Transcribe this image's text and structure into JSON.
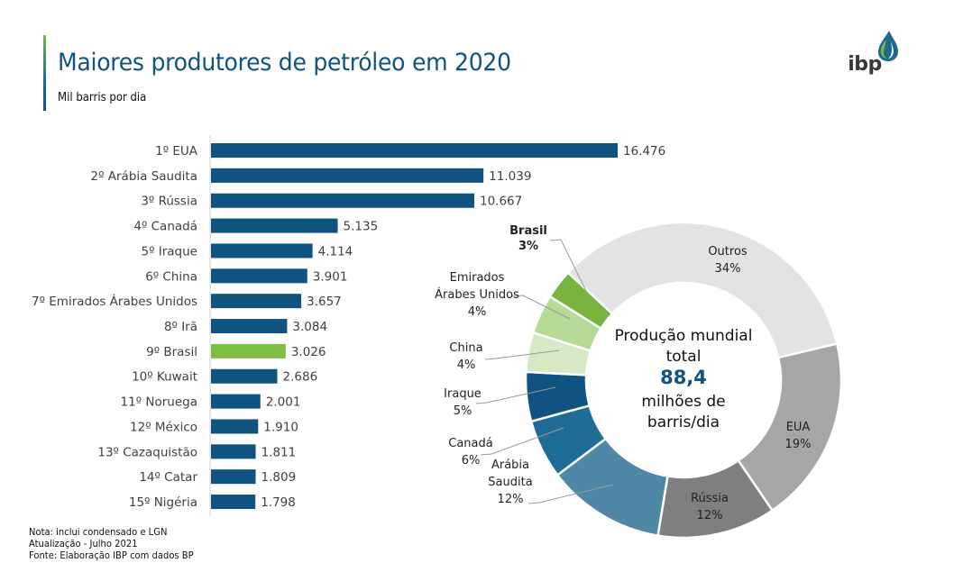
{
  "header": {
    "title": "Maiores produtores de petróleo em 2020",
    "subtitle": "Mil barris por dia",
    "logo_text": "ibp"
  },
  "footnotes": [
    "Nota: inclui condensado e LGN",
    "Atualização - Julho 2021",
    "Fonte: Elaboração IBP com dados BP"
  ],
  "colors": {
    "bar_default": "#0f5480",
    "bar_highlight": "#7dbf42",
    "title": "#0f5480"
  },
  "chart_data": [
    {
      "type": "bar",
      "orientation": "horizontal",
      "title": "Maiores produtores de petróleo em 2020",
      "ylabel": "",
      "xlabel": "Mil barris por dia",
      "highlight": "9º Brasil",
      "categories": [
        "1º EUA",
        "2º Arábia Saudita",
        "3º Rússia",
        "4º Canadá",
        "5º Iraque",
        "6º China",
        "7º Emirados Árabes Unidos",
        "8º Irã",
        "9º Brasil",
        "10º Kuwait",
        "11º Noruega",
        "12º México",
        "13º Cazaquistão",
        "14º Catar",
        "15º Nigéria"
      ],
      "values": [
        16476,
        11039,
        10667,
        5135,
        4114,
        3901,
        3657,
        3084,
        3026,
        2686,
        2001,
        1910,
        1811,
        1809,
        1798
      ],
      "value_labels": [
        "16.476",
        "11.039",
        "10.667",
        "5.135",
        "4.114",
        "3.901",
        "3.657",
        "3.084",
        "3.026",
        "2.686",
        "2.001",
        "1.910",
        "1.811",
        "1.809",
        "1.798"
      ],
      "xlim": [
        0,
        16476
      ],
      "grid": false
    },
    {
      "type": "pie",
      "donut": true,
      "center_text": {
        "line1": "Produção mundial",
        "line2": "total",
        "value": "88,4",
        "line3": "milhões de",
        "line4": "barris/dia"
      },
      "slices": [
        {
          "name": "Outros",
          "value": 34,
          "label_pct": "34%",
          "color": "#e3e3e3",
          "label_lines": [
            "Outros"
          ]
        },
        {
          "name": "EUA",
          "value": 19,
          "label_pct": "19%",
          "color": "#a6a6a6",
          "label_lines": [
            "EUA"
          ]
        },
        {
          "name": "Rússia",
          "value": 12,
          "label_pct": "12%",
          "color": "#7f7f7f",
          "label_lines": [
            "Rússia"
          ]
        },
        {
          "name": "Arábia Saudita",
          "value": 12,
          "label_pct": "12%",
          "color": "#4f87a6",
          "label_lines": [
            "Arábia",
            "Saudita"
          ]
        },
        {
          "name": "Canadá",
          "value": 6,
          "label_pct": "6%",
          "color": "#1f6d96",
          "label_lines": [
            "Canadá"
          ]
        },
        {
          "name": "Iraque",
          "value": 5,
          "label_pct": "5%",
          "color": "#0f5480",
          "label_lines": [
            "Iraque"
          ]
        },
        {
          "name": "China",
          "value": 4,
          "label_pct": "4%",
          "color": "#d7eac7",
          "label_lines": [
            "China"
          ]
        },
        {
          "name": "Emirados Árabes Unidos",
          "value": 4,
          "label_pct": "4%",
          "color": "#b6db96",
          "label_lines": [
            "Emirados",
            "Árabes Unidos"
          ]
        },
        {
          "name": "Brasil",
          "value": 3,
          "label_pct": "3%",
          "color": "#79b43f",
          "label_lines": [
            "Brasil"
          ],
          "bold": true
        }
      ]
    }
  ]
}
